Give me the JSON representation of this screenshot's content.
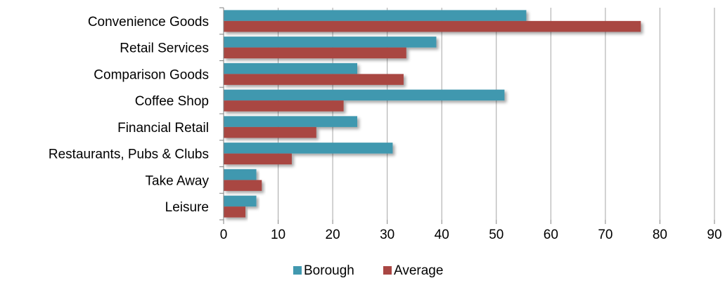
{
  "chart_data": {
    "type": "bar",
    "orientation": "horizontal",
    "categories": [
      "Convenience Goods",
      "Retail Services",
      "Comparison Goods",
      "Coffee Shop",
      "Financial Retail",
      "Restaurants, Pubs & Clubs",
      "Take Away",
      "Leisure"
    ],
    "series": [
      {
        "name": "Borough",
        "color": "#4198AF",
        "values": [
          55.5,
          39,
          24.5,
          51.5,
          24.5,
          31,
          6,
          6
        ]
      },
      {
        "name": "Average",
        "color": "#A94643",
        "values": [
          76.5,
          33.5,
          33,
          22,
          17,
          12.5,
          7,
          4
        ]
      }
    ],
    "xlim": [
      0,
      90
    ],
    "x_ticks": [
      0,
      10,
      20,
      30,
      40,
      50,
      60,
      70,
      80,
      90
    ],
    "grid": true,
    "legend_position": "bottom",
    "title": "",
    "xlabel": "",
    "ylabel": ""
  }
}
